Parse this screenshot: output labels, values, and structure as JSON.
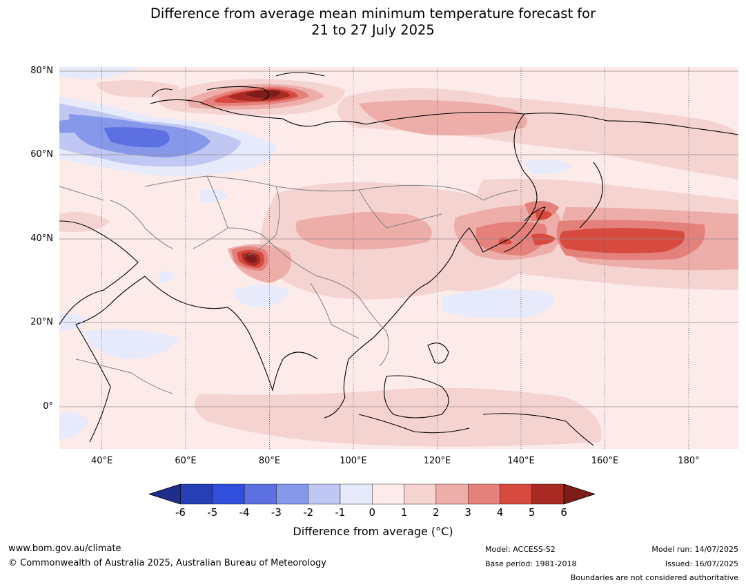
{
  "title": {
    "line1": "Difference from average mean minimum temperature forecast for",
    "line2": "21 to 27 July 2025"
  },
  "map": {
    "lon_range_deg_e": [
      30,
      192
    ],
    "lat_range_deg": [
      -10,
      81
    ],
    "lat_ticks": [
      "80°N",
      "60°N",
      "40°N",
      "20°N",
      "0°"
    ],
    "lon_ticks": [
      "40°E",
      "60°E",
      "80°E",
      "100°E",
      "120°E",
      "140°E",
      "160°E",
      "180°"
    ],
    "background_class": "0 to 1",
    "anomaly_regions": [
      {
        "name": "barents-kara-warm",
        "class": "5 to 6+"
      },
      {
        "name": "north-russia-warm",
        "class": "2 to 3"
      },
      {
        "name": "west-russia-cold",
        "class": "-4 to -3"
      },
      {
        "name": "tibet-warm",
        "class": "5 to 6+"
      },
      {
        "name": "china-warm",
        "class": "2 to 3"
      },
      {
        "name": "japan-north-pacific-warm",
        "class": "4 to 5"
      },
      {
        "name": "bay-of-bengal-cool",
        "class": "-1 to 0"
      },
      {
        "name": "indonesia-warm",
        "class": "1 to 2"
      }
    ]
  },
  "colorbar": {
    "ticks": [
      "-6",
      "-5",
      "-4",
      "-3",
      "-2",
      "-1",
      "0",
      "1",
      "2",
      "3",
      "4",
      "5",
      "6"
    ],
    "colors": [
      "#1f2e8a",
      "#263fb4",
      "#2f4fdc",
      "#5c70e2",
      "#8698ea",
      "#bfc7f2",
      "#e7eafb",
      "#fcebe9",
      "#f5d3d0",
      "#edaeaa",
      "#e5817b",
      "#d64a40",
      "#a82a23",
      "#7d1c18"
    ],
    "label": "Difference from average (°C)"
  },
  "footer": {
    "website": "www.bom.gov.au/climate",
    "copyright": "© Commonwealth of Australia 2025, Australian Bureau of Meteorology",
    "model": "Model: ACCESS-S2",
    "base_period": "Base period: 1981-2018",
    "model_run": "Model run: 14/07/2025",
    "issued": "Issued: 16/07/2025",
    "disclaimer": "Boundaries are not considered authoritative"
  }
}
